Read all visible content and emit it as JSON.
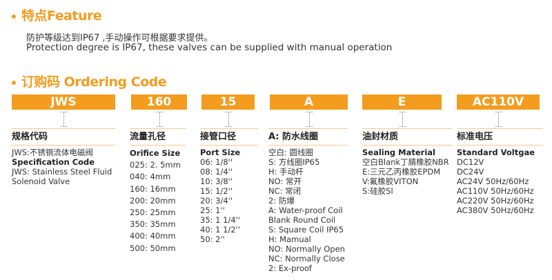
{
  "feature": {
    "title": "特点Feature",
    "line_cn": "防护等级达到IP67 ,手动操作可根据要求提供。",
    "line_en": "Protection degree is IP67, these valves can be supplied with manual operation"
  },
  "ordering": {
    "title": "订购码 Ordering Code"
  },
  "accent_color": "#f39c1e",
  "codes": [
    "JWS",
    "160",
    "15",
    "A",
    "E",
    "AC110V"
  ],
  "columns": [
    {
      "heading": "规格代码",
      "lines": [
        {
          "t": "JWS:不锈钢流体电磁阀"
        },
        {
          "t": "Specification Code",
          "bold": true
        },
        {
          "t": "JWS: Stainless Steel Fluid"
        },
        {
          "t": "Solenoid Valve"
        }
      ]
    },
    {
      "heading": "流量孔径",
      "lines": [
        {
          "t": "Orifice Size",
          "bold": true
        },
        {
          "t": "025: 2. 5mm"
        },
        {
          "t": "040: 4mm"
        },
        {
          "t": "160: 16mm"
        },
        {
          "t": "200: 20mm"
        },
        {
          "t": "250: 25mm"
        },
        {
          "t": "350: 35mm"
        },
        {
          "t": "400: 40mm"
        },
        {
          "t": "500: 50mm"
        }
      ]
    },
    {
      "heading": "接管口径",
      "lines": [
        {
          "t": "Port Size",
          "bold": true
        },
        {
          "t": "06: 1/8''"
        },
        {
          "t": "08: 1/4''"
        },
        {
          "t": "10: 3/8''"
        },
        {
          "t": "15: 1/2''"
        },
        {
          "t": "20: 3/4''"
        },
        {
          "t": "25: 1''"
        },
        {
          "t": "35: 1  1/4''"
        },
        {
          "t": "40: 1  1/2''"
        },
        {
          "t": "50: 2''"
        }
      ]
    },
    {
      "heading": "A: 防水线圈",
      "lines": [
        {
          "t": "空白: 圆线圈"
        },
        {
          "t": "S: 方线圈IP65"
        },
        {
          "t": "H: 手动杆"
        },
        {
          "t": "NO: 常开"
        },
        {
          "t": "NC: 常闭"
        },
        {
          "t": "2: 防爆"
        },
        {
          "t": "A: Water-proof Coil"
        },
        {
          "t": "Blank Round Coil"
        },
        {
          "t": "S: Square Coil IP65"
        },
        {
          "t": "H: Mamual"
        },
        {
          "t": "NO: Normally Open"
        },
        {
          "t": "NC: Normally Close"
        },
        {
          "t": "2: Ex-proof"
        }
      ]
    },
    {
      "heading": "油封材质",
      "lines": [
        {
          "t": "Sealing Material",
          "bold": true
        },
        {
          "t": "空白Blank丁腈橡胶NBR"
        },
        {
          "t": "E:三元乙丙橡胶EPDM"
        },
        {
          "t": "V:氟橡胶VITON"
        },
        {
          "t": "S:硅胶Sl"
        }
      ]
    },
    {
      "heading": "标准电压",
      "lines": [
        {
          "t": "Standard Voltgae",
          "bold": true
        },
        {
          "t": "DC12V"
        },
        {
          "t": "DC24V"
        },
        {
          "t": "AC24V 50Hz/60Hz"
        },
        {
          "t": "AC110V 50Hz/60Hz"
        },
        {
          "t": "AC220V 50Hz/60Hz"
        },
        {
          "t": "AC380V 50Hz/60Hz"
        }
      ]
    }
  ]
}
